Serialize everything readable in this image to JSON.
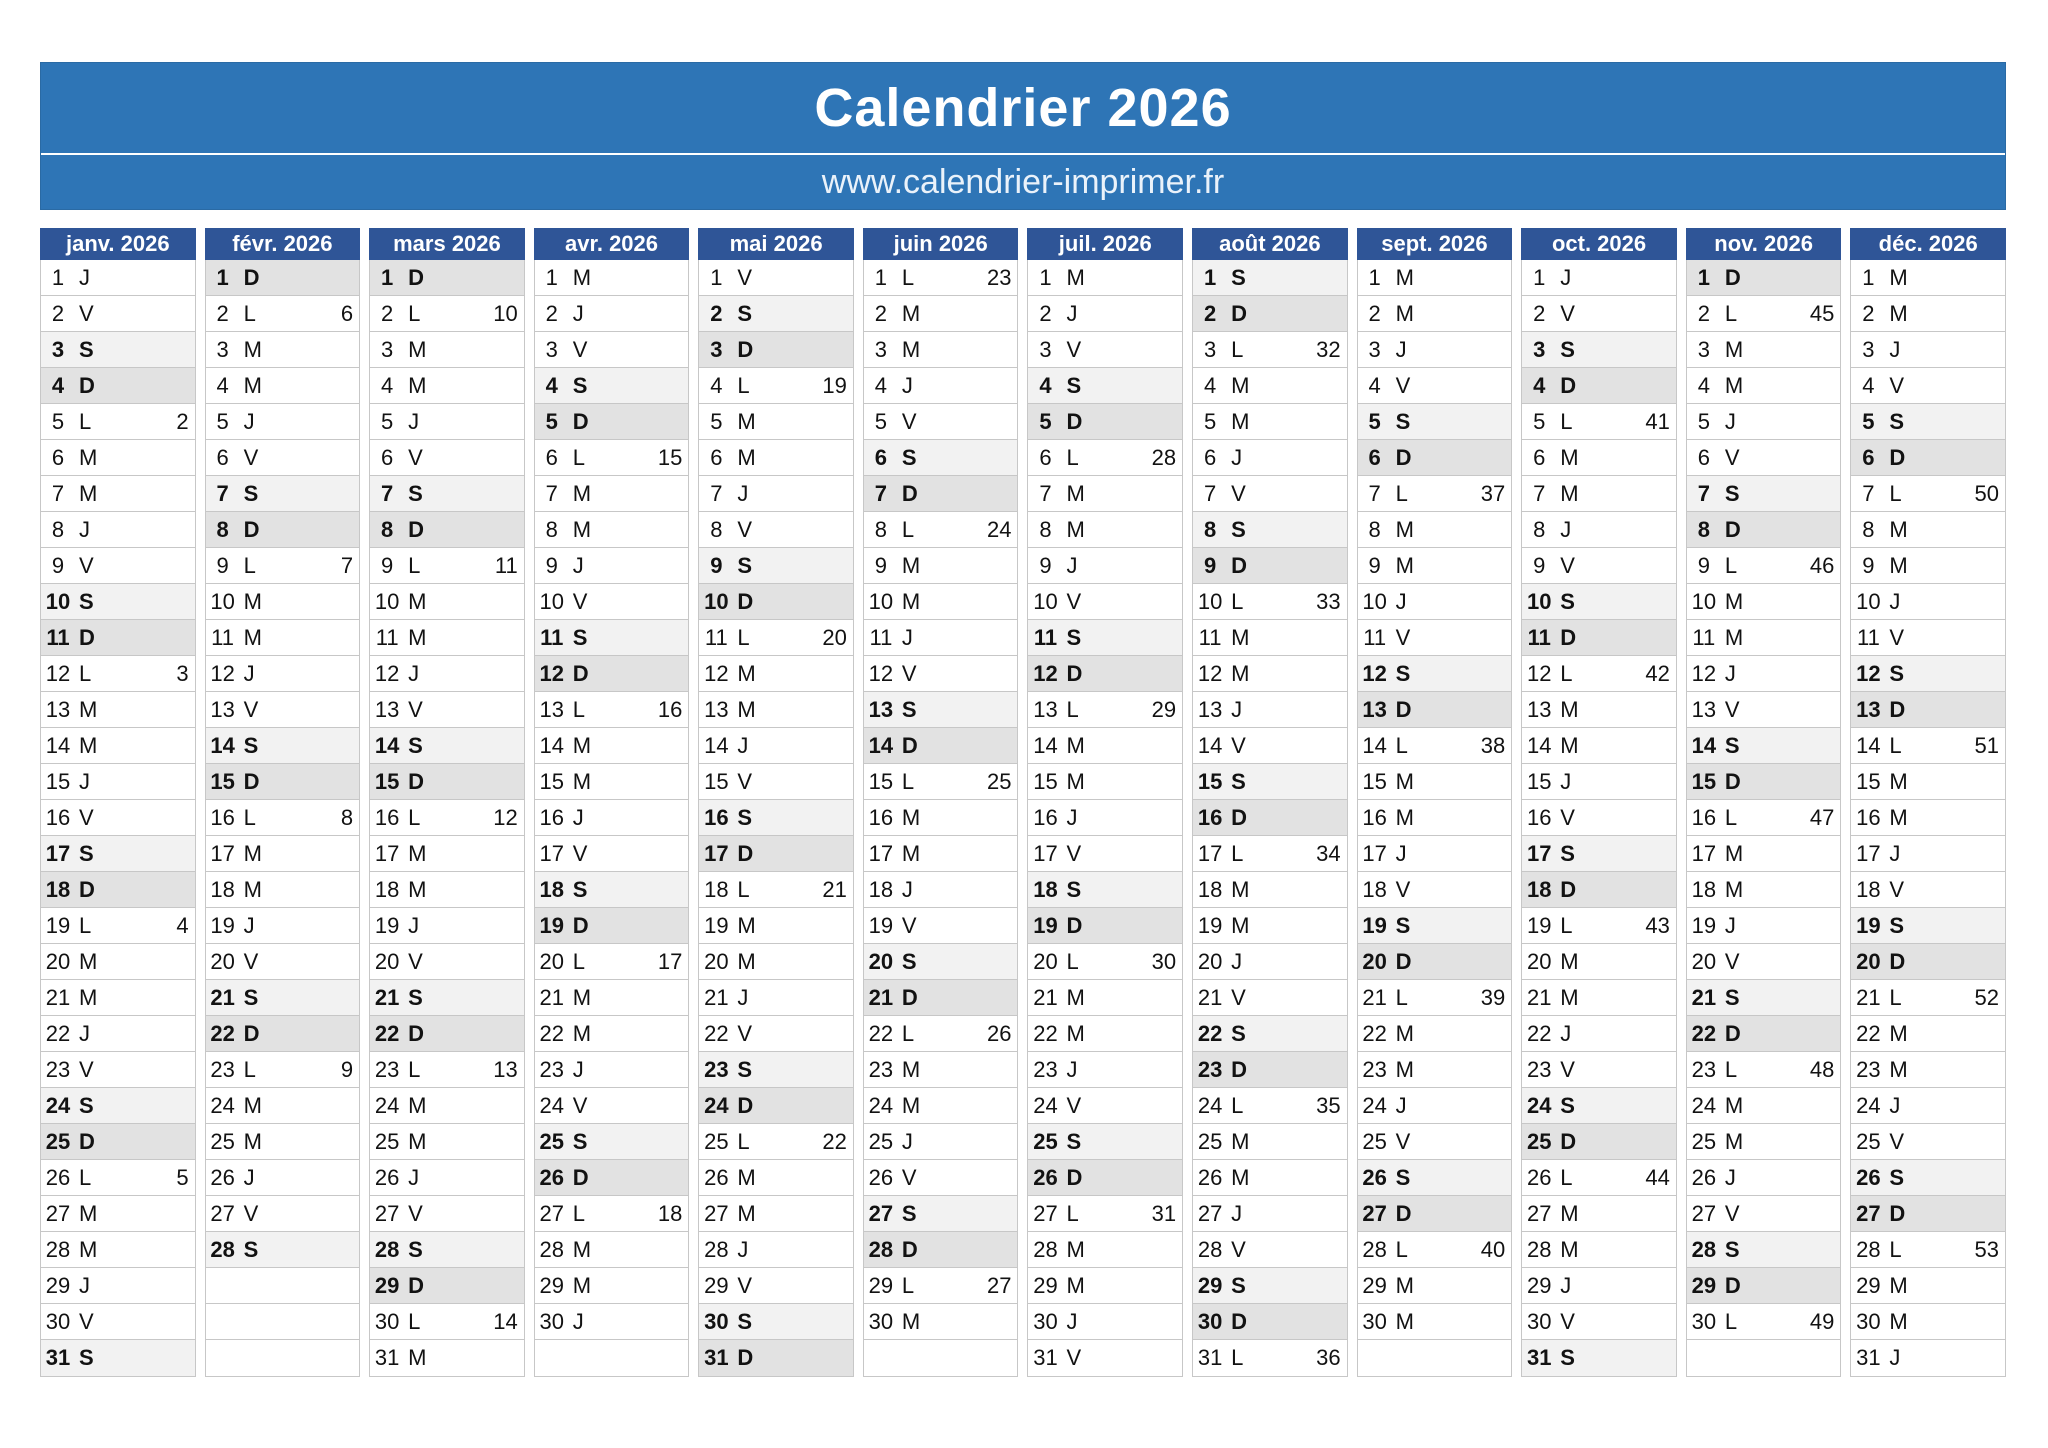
{
  "title": "Calendrier 2026",
  "subtitle": "www.calendrier-imprimer.fr",
  "colors": {
    "banner_blue": "#2E75B6",
    "month_header_blue": "#2F5597",
    "saturday_row_bg": "#F2F2F2",
    "sunday_row_bg": "#E2E2E2"
  },
  "row_slots_per_month": 31,
  "months": [
    {
      "label": "janv. 2026",
      "days": [
        [
          1,
          "J"
        ],
        [
          2,
          "V"
        ],
        [
          3,
          "S"
        ],
        [
          4,
          "D"
        ],
        [
          5,
          "L",
          2
        ],
        [
          6,
          "M"
        ],
        [
          7,
          "M"
        ],
        [
          8,
          "J"
        ],
        [
          9,
          "V"
        ],
        [
          10,
          "S"
        ],
        [
          11,
          "D"
        ],
        [
          12,
          "L",
          3
        ],
        [
          13,
          "M"
        ],
        [
          14,
          "M"
        ],
        [
          15,
          "J"
        ],
        [
          16,
          "V"
        ],
        [
          17,
          "S"
        ],
        [
          18,
          "D"
        ],
        [
          19,
          "L",
          4
        ],
        [
          20,
          "M"
        ],
        [
          21,
          "M"
        ],
        [
          22,
          "J"
        ],
        [
          23,
          "V"
        ],
        [
          24,
          "S"
        ],
        [
          25,
          "D"
        ],
        [
          26,
          "L",
          5
        ],
        [
          27,
          "M"
        ],
        [
          28,
          "M"
        ],
        [
          29,
          "J"
        ],
        [
          30,
          "V"
        ],
        [
          31,
          "S"
        ]
      ]
    },
    {
      "label": "févr. 2026",
      "days": [
        [
          1,
          "D"
        ],
        [
          2,
          "L",
          6
        ],
        [
          3,
          "M"
        ],
        [
          4,
          "M"
        ],
        [
          5,
          "J"
        ],
        [
          6,
          "V"
        ],
        [
          7,
          "S"
        ],
        [
          8,
          "D"
        ],
        [
          9,
          "L",
          7
        ],
        [
          10,
          "M"
        ],
        [
          11,
          "M"
        ],
        [
          12,
          "J"
        ],
        [
          13,
          "V"
        ],
        [
          14,
          "S"
        ],
        [
          15,
          "D"
        ],
        [
          16,
          "L",
          8
        ],
        [
          17,
          "M"
        ],
        [
          18,
          "M"
        ],
        [
          19,
          "J"
        ],
        [
          20,
          "V"
        ],
        [
          21,
          "S"
        ],
        [
          22,
          "D"
        ],
        [
          23,
          "L",
          9
        ],
        [
          24,
          "M"
        ],
        [
          25,
          "M"
        ],
        [
          26,
          "J"
        ],
        [
          27,
          "V"
        ],
        [
          28,
          "S"
        ]
      ]
    },
    {
      "label": "mars 2026",
      "days": [
        [
          1,
          "D"
        ],
        [
          2,
          "L",
          10
        ],
        [
          3,
          "M"
        ],
        [
          4,
          "M"
        ],
        [
          5,
          "J"
        ],
        [
          6,
          "V"
        ],
        [
          7,
          "S"
        ],
        [
          8,
          "D"
        ],
        [
          9,
          "L",
          11
        ],
        [
          10,
          "M"
        ],
        [
          11,
          "M"
        ],
        [
          12,
          "J"
        ],
        [
          13,
          "V"
        ],
        [
          14,
          "S"
        ],
        [
          15,
          "D"
        ],
        [
          16,
          "L",
          12
        ],
        [
          17,
          "M"
        ],
        [
          18,
          "M"
        ],
        [
          19,
          "J"
        ],
        [
          20,
          "V"
        ],
        [
          21,
          "S"
        ],
        [
          22,
          "D"
        ],
        [
          23,
          "L",
          13
        ],
        [
          24,
          "M"
        ],
        [
          25,
          "M"
        ],
        [
          26,
          "J"
        ],
        [
          27,
          "V"
        ],
        [
          28,
          "S"
        ],
        [
          29,
          "D"
        ],
        [
          30,
          "L",
          14
        ],
        [
          31,
          "M"
        ]
      ]
    },
    {
      "label": "avr. 2026",
      "days": [
        [
          1,
          "M"
        ],
        [
          2,
          "J"
        ],
        [
          3,
          "V"
        ],
        [
          4,
          "S"
        ],
        [
          5,
          "D"
        ],
        [
          6,
          "L",
          15
        ],
        [
          7,
          "M"
        ],
        [
          8,
          "M"
        ],
        [
          9,
          "J"
        ],
        [
          10,
          "V"
        ],
        [
          11,
          "S"
        ],
        [
          12,
          "D"
        ],
        [
          13,
          "L",
          16
        ],
        [
          14,
          "M"
        ],
        [
          15,
          "M"
        ],
        [
          16,
          "J"
        ],
        [
          17,
          "V"
        ],
        [
          18,
          "S"
        ],
        [
          19,
          "D"
        ],
        [
          20,
          "L",
          17
        ],
        [
          21,
          "M"
        ],
        [
          22,
          "M"
        ],
        [
          23,
          "J"
        ],
        [
          24,
          "V"
        ],
        [
          25,
          "S"
        ],
        [
          26,
          "D"
        ],
        [
          27,
          "L",
          18
        ],
        [
          28,
          "M"
        ],
        [
          29,
          "M"
        ],
        [
          30,
          "J"
        ]
      ]
    },
    {
      "label": "mai 2026",
      "days": [
        [
          1,
          "V"
        ],
        [
          2,
          "S"
        ],
        [
          3,
          "D"
        ],
        [
          4,
          "L",
          19
        ],
        [
          5,
          "M"
        ],
        [
          6,
          "M"
        ],
        [
          7,
          "J"
        ],
        [
          8,
          "V"
        ],
        [
          9,
          "S"
        ],
        [
          10,
          "D"
        ],
        [
          11,
          "L",
          20
        ],
        [
          12,
          "M"
        ],
        [
          13,
          "M"
        ],
        [
          14,
          "J"
        ],
        [
          15,
          "V"
        ],
        [
          16,
          "S"
        ],
        [
          17,
          "D"
        ],
        [
          18,
          "L",
          21
        ],
        [
          19,
          "M"
        ],
        [
          20,
          "M"
        ],
        [
          21,
          "J"
        ],
        [
          22,
          "V"
        ],
        [
          23,
          "S"
        ],
        [
          24,
          "D"
        ],
        [
          25,
          "L",
          22
        ],
        [
          26,
          "M"
        ],
        [
          27,
          "M"
        ],
        [
          28,
          "J"
        ],
        [
          29,
          "V"
        ],
        [
          30,
          "S"
        ],
        [
          31,
          "D"
        ]
      ]
    },
    {
      "label": "juin 2026",
      "days": [
        [
          1,
          "L",
          23
        ],
        [
          2,
          "M"
        ],
        [
          3,
          "M"
        ],
        [
          4,
          "J"
        ],
        [
          5,
          "V"
        ],
        [
          6,
          "S"
        ],
        [
          7,
          "D"
        ],
        [
          8,
          "L",
          24
        ],
        [
          9,
          "M"
        ],
        [
          10,
          "M"
        ],
        [
          11,
          "J"
        ],
        [
          12,
          "V"
        ],
        [
          13,
          "S"
        ],
        [
          14,
          "D"
        ],
        [
          15,
          "L",
          25
        ],
        [
          16,
          "M"
        ],
        [
          17,
          "M"
        ],
        [
          18,
          "J"
        ],
        [
          19,
          "V"
        ],
        [
          20,
          "S"
        ],
        [
          21,
          "D"
        ],
        [
          22,
          "L",
          26
        ],
        [
          23,
          "M"
        ],
        [
          24,
          "M"
        ],
        [
          25,
          "J"
        ],
        [
          26,
          "V"
        ],
        [
          27,
          "S"
        ],
        [
          28,
          "D"
        ],
        [
          29,
          "L",
          27
        ],
        [
          30,
          "M"
        ]
      ]
    },
    {
      "label": "juil. 2026",
      "days": [
        [
          1,
          "M"
        ],
        [
          2,
          "J"
        ],
        [
          3,
          "V"
        ],
        [
          4,
          "S"
        ],
        [
          5,
          "D"
        ],
        [
          6,
          "L",
          28
        ],
        [
          7,
          "M"
        ],
        [
          8,
          "M"
        ],
        [
          9,
          "J"
        ],
        [
          10,
          "V"
        ],
        [
          11,
          "S"
        ],
        [
          12,
          "D"
        ],
        [
          13,
          "L",
          29
        ],
        [
          14,
          "M"
        ],
        [
          15,
          "M"
        ],
        [
          16,
          "J"
        ],
        [
          17,
          "V"
        ],
        [
          18,
          "S"
        ],
        [
          19,
          "D"
        ],
        [
          20,
          "L",
          30
        ],
        [
          21,
          "M"
        ],
        [
          22,
          "M"
        ],
        [
          23,
          "J"
        ],
        [
          24,
          "V"
        ],
        [
          25,
          "S"
        ],
        [
          26,
          "D"
        ],
        [
          27,
          "L",
          31
        ],
        [
          28,
          "M"
        ],
        [
          29,
          "M"
        ],
        [
          30,
          "J"
        ],
        [
          31,
          "V"
        ]
      ]
    },
    {
      "label": "août 2026",
      "days": [
        [
          1,
          "S"
        ],
        [
          2,
          "D"
        ],
        [
          3,
          "L",
          32
        ],
        [
          4,
          "M"
        ],
        [
          5,
          "M"
        ],
        [
          6,
          "J"
        ],
        [
          7,
          "V"
        ],
        [
          8,
          "S"
        ],
        [
          9,
          "D"
        ],
        [
          10,
          "L",
          33
        ],
        [
          11,
          "M"
        ],
        [
          12,
          "M"
        ],
        [
          13,
          "J"
        ],
        [
          14,
          "V"
        ],
        [
          15,
          "S"
        ],
        [
          16,
          "D"
        ],
        [
          17,
          "L",
          34
        ],
        [
          18,
          "M"
        ],
        [
          19,
          "M"
        ],
        [
          20,
          "J"
        ],
        [
          21,
          "V"
        ],
        [
          22,
          "S"
        ],
        [
          23,
          "D"
        ],
        [
          24,
          "L",
          35
        ],
        [
          25,
          "M"
        ],
        [
          26,
          "M"
        ],
        [
          27,
          "J"
        ],
        [
          28,
          "V"
        ],
        [
          29,
          "S"
        ],
        [
          30,
          "D"
        ],
        [
          31,
          "L",
          36
        ]
      ]
    },
    {
      "label": "sept. 2026",
      "days": [
        [
          1,
          "M"
        ],
        [
          2,
          "M"
        ],
        [
          3,
          "J"
        ],
        [
          4,
          "V"
        ],
        [
          5,
          "S"
        ],
        [
          6,
          "D"
        ],
        [
          7,
          "L",
          37
        ],
        [
          8,
          "M"
        ],
        [
          9,
          "M"
        ],
        [
          10,
          "J"
        ],
        [
          11,
          "V"
        ],
        [
          12,
          "S"
        ],
        [
          13,
          "D"
        ],
        [
          14,
          "L",
          38
        ],
        [
          15,
          "M"
        ],
        [
          16,
          "M"
        ],
        [
          17,
          "J"
        ],
        [
          18,
          "V"
        ],
        [
          19,
          "S"
        ],
        [
          20,
          "D"
        ],
        [
          21,
          "L",
          39
        ],
        [
          22,
          "M"
        ],
        [
          23,
          "M"
        ],
        [
          24,
          "J"
        ],
        [
          25,
          "V"
        ],
        [
          26,
          "S"
        ],
        [
          27,
          "D"
        ],
        [
          28,
          "L",
          40
        ],
        [
          29,
          "M"
        ],
        [
          30,
          "M"
        ]
      ]
    },
    {
      "label": "oct. 2026",
      "days": [
        [
          1,
          "J"
        ],
        [
          2,
          "V"
        ],
        [
          3,
          "S"
        ],
        [
          4,
          "D"
        ],
        [
          5,
          "L",
          41
        ],
        [
          6,
          "M"
        ],
        [
          7,
          "M"
        ],
        [
          8,
          "J"
        ],
        [
          9,
          "V"
        ],
        [
          10,
          "S"
        ],
        [
          11,
          "D"
        ],
        [
          12,
          "L",
          42
        ],
        [
          13,
          "M"
        ],
        [
          14,
          "M"
        ],
        [
          15,
          "J"
        ],
        [
          16,
          "V"
        ],
        [
          17,
          "S"
        ],
        [
          18,
          "D"
        ],
        [
          19,
          "L",
          43
        ],
        [
          20,
          "M"
        ],
        [
          21,
          "M"
        ],
        [
          22,
          "J"
        ],
        [
          23,
          "V"
        ],
        [
          24,
          "S"
        ],
        [
          25,
          "D"
        ],
        [
          26,
          "L",
          44
        ],
        [
          27,
          "M"
        ],
        [
          28,
          "M"
        ],
        [
          29,
          "J"
        ],
        [
          30,
          "V"
        ],
        [
          31,
          "S"
        ]
      ]
    },
    {
      "label": "nov. 2026",
      "days": [
        [
          1,
          "D"
        ],
        [
          2,
          "L",
          45
        ],
        [
          3,
          "M"
        ],
        [
          4,
          "M"
        ],
        [
          5,
          "J"
        ],
        [
          6,
          "V"
        ],
        [
          7,
          "S"
        ],
        [
          8,
          "D"
        ],
        [
          9,
          "L",
          46
        ],
        [
          10,
          "M"
        ],
        [
          11,
          "M"
        ],
        [
          12,
          "J"
        ],
        [
          13,
          "V"
        ],
        [
          14,
          "S"
        ],
        [
          15,
          "D"
        ],
        [
          16,
          "L",
          47
        ],
        [
          17,
          "M"
        ],
        [
          18,
          "M"
        ],
        [
          19,
          "J"
        ],
        [
          20,
          "V"
        ],
        [
          21,
          "S"
        ],
        [
          22,
          "D"
        ],
        [
          23,
          "L",
          48
        ],
        [
          24,
          "M"
        ],
        [
          25,
          "M"
        ],
        [
          26,
          "J"
        ],
        [
          27,
          "V"
        ],
        [
          28,
          "S"
        ],
        [
          29,
          "D"
        ],
        [
          30,
          "L",
          49
        ]
      ]
    },
    {
      "label": "déc. 2026",
      "days": [
        [
          1,
          "M"
        ],
        [
          2,
          "M"
        ],
        [
          3,
          "J"
        ],
        [
          4,
          "V"
        ],
        [
          5,
          "S"
        ],
        [
          6,
          "D"
        ],
        [
          7,
          "L",
          50
        ],
        [
          8,
          "M"
        ],
        [
          9,
          "M"
        ],
        [
          10,
          "J"
        ],
        [
          11,
          "V"
        ],
        [
          12,
          "S"
        ],
        [
          13,
          "D"
        ],
        [
          14,
          "L",
          51
        ],
        [
          15,
          "M"
        ],
        [
          16,
          "M"
        ],
        [
          17,
          "J"
        ],
        [
          18,
          "V"
        ],
        [
          19,
          "S"
        ],
        [
          20,
          "D"
        ],
        [
          21,
          "L",
          52
        ],
        [
          22,
          "M"
        ],
        [
          23,
          "M"
        ],
        [
          24,
          "J"
        ],
        [
          25,
          "V"
        ],
        [
          26,
          "S"
        ],
        [
          27,
          "D"
        ],
        [
          28,
          "L",
          53
        ],
        [
          29,
          "M"
        ],
        [
          30,
          "M"
        ],
        [
          31,
          "J"
        ]
      ]
    }
  ]
}
